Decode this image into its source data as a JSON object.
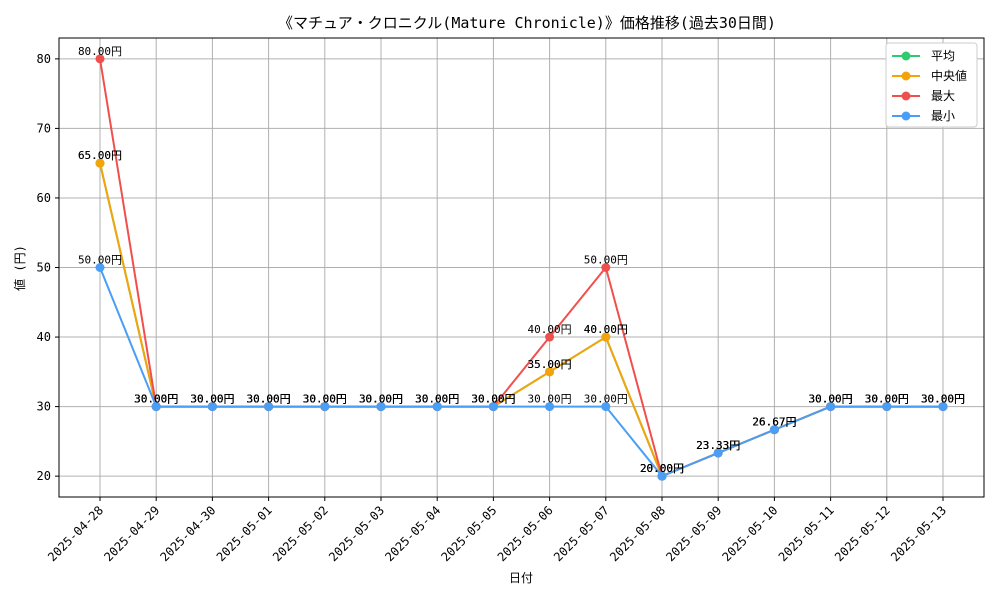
{
  "chart_data": {
    "type": "line",
    "title": "《マチュア・クロニクル(Mature Chronicle)》価格推移(過去30日間)",
    "xlabel": "日付",
    "ylabel": "値 (円)",
    "ylim": [
      17,
      83
    ],
    "yticks": [
      20,
      30,
      40,
      50,
      60,
      70,
      80
    ],
    "grid": true,
    "legend_position": "top-right",
    "categories": [
      "2025-04-28",
      "2025-04-29",
      "2025-04-30",
      "2025-05-01",
      "2025-05-02",
      "2025-05-03",
      "2025-05-04",
      "2025-05-05",
      "2025-05-06",
      "2025-05-07",
      "2025-05-08",
      "2025-05-09",
      "2025-05-10",
      "2025-05-11",
      "2025-05-12",
      "2025-05-13"
    ],
    "series": [
      {
        "name": "平均",
        "color": "#2ecc71",
        "values": [
          65,
          30,
          30,
          30,
          30,
          30,
          30,
          30,
          35,
          40,
          20,
          23.33,
          26.67,
          30,
          30,
          30
        ]
      },
      {
        "name": "中央値",
        "color": "#f5a30a",
        "values": [
          65,
          30,
          30,
          30,
          30,
          30,
          30,
          30,
          35,
          40,
          20,
          23.33,
          26.67,
          30,
          30,
          30
        ]
      },
      {
        "name": "最大",
        "color": "#f0504d",
        "values": [
          80,
          30,
          30,
          30,
          30,
          30,
          30,
          30,
          40,
          50,
          20,
          23.33,
          26.67,
          30,
          30,
          30
        ]
      },
      {
        "name": "最小",
        "color": "#4a9ef5",
        "values": [
          50,
          30,
          30,
          30,
          30,
          30,
          30,
          30,
          30,
          30,
          20,
          23.33,
          26.67,
          30,
          30,
          30
        ]
      }
    ],
    "label_suffix": "円"
  }
}
